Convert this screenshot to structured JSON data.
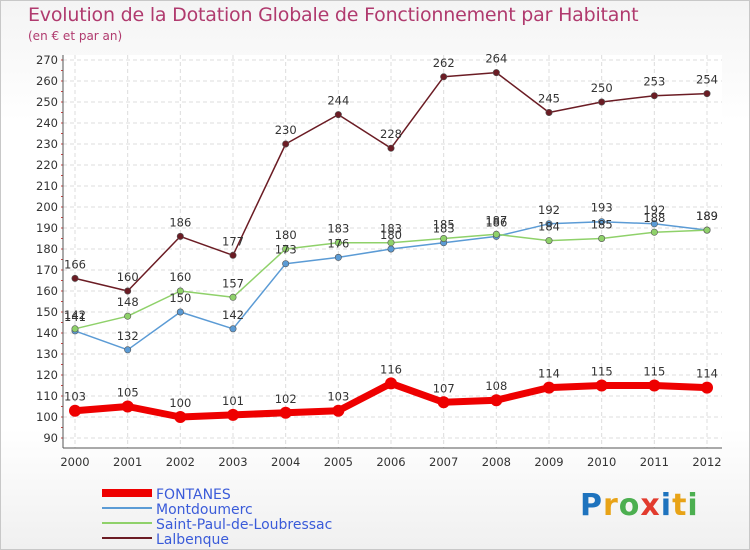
{
  "title": "Evolution de la Dotation Globale de Fonctionnement par Habitant",
  "subtitle": "(en € et par an)",
  "logo": {
    "text": "Proxiti",
    "letters": [
      {
        "ch": "P",
        "color": "#1e73be"
      },
      {
        "ch": "r",
        "color": "#e8a317"
      },
      {
        "ch": "o",
        "color": "#4caf50"
      },
      {
        "ch": "x",
        "color": "#e23b2e"
      },
      {
        "ch": "i",
        "color": "#1e73be"
      },
      {
        "ch": "t",
        "color": "#e8a317"
      },
      {
        "ch": "i",
        "color": "#4caf50"
      }
    ]
  },
  "chart_data": {
    "type": "line",
    "title": "Evolution de la Dotation Globale de Fonctionnement par Habitant",
    "subtitle": "(en € et par an)",
    "xlabel": "",
    "ylabel": "",
    "x": [
      "2000",
      "2001",
      "2002",
      "2003",
      "2004",
      "2005",
      "2006",
      "2007",
      "2008",
      "2009",
      "2010",
      "2011",
      "2012"
    ],
    "ylim": [
      90,
      270
    ],
    "yticks": [
      90,
      100,
      110,
      120,
      130,
      140,
      150,
      160,
      170,
      180,
      190,
      200,
      210,
      220,
      230,
      240,
      250,
      260,
      270
    ],
    "grid": true,
    "legend_position": "bottom-left",
    "series": [
      {
        "name": "FONTANES",
        "color": "#ee0000",
        "emphasis": true,
        "values": [
          103,
          105,
          100,
          101,
          102,
          103,
          116,
          107,
          108,
          114,
          115,
          115,
          114
        ]
      },
      {
        "name": "Montdoumerc",
        "color": "#5b9bd5",
        "emphasis": false,
        "values": [
          141,
          132,
          150,
          142,
          173,
          176,
          180,
          183,
          186,
          192,
          193,
          192,
          189
        ]
      },
      {
        "name": "Saint-Paul-de-Loubressac",
        "color": "#8fd16a",
        "emphasis": false,
        "values": [
          142,
          148,
          160,
          157,
          180,
          183,
          183,
          185,
          187,
          184,
          185,
          188,
          189
        ]
      },
      {
        "name": "Lalbenque",
        "color": "#6b1c24",
        "emphasis": false,
        "values": [
          166,
          160,
          186,
          177,
          230,
          244,
          228,
          262,
          264,
          245,
          250,
          253,
          254
        ]
      }
    ]
  }
}
